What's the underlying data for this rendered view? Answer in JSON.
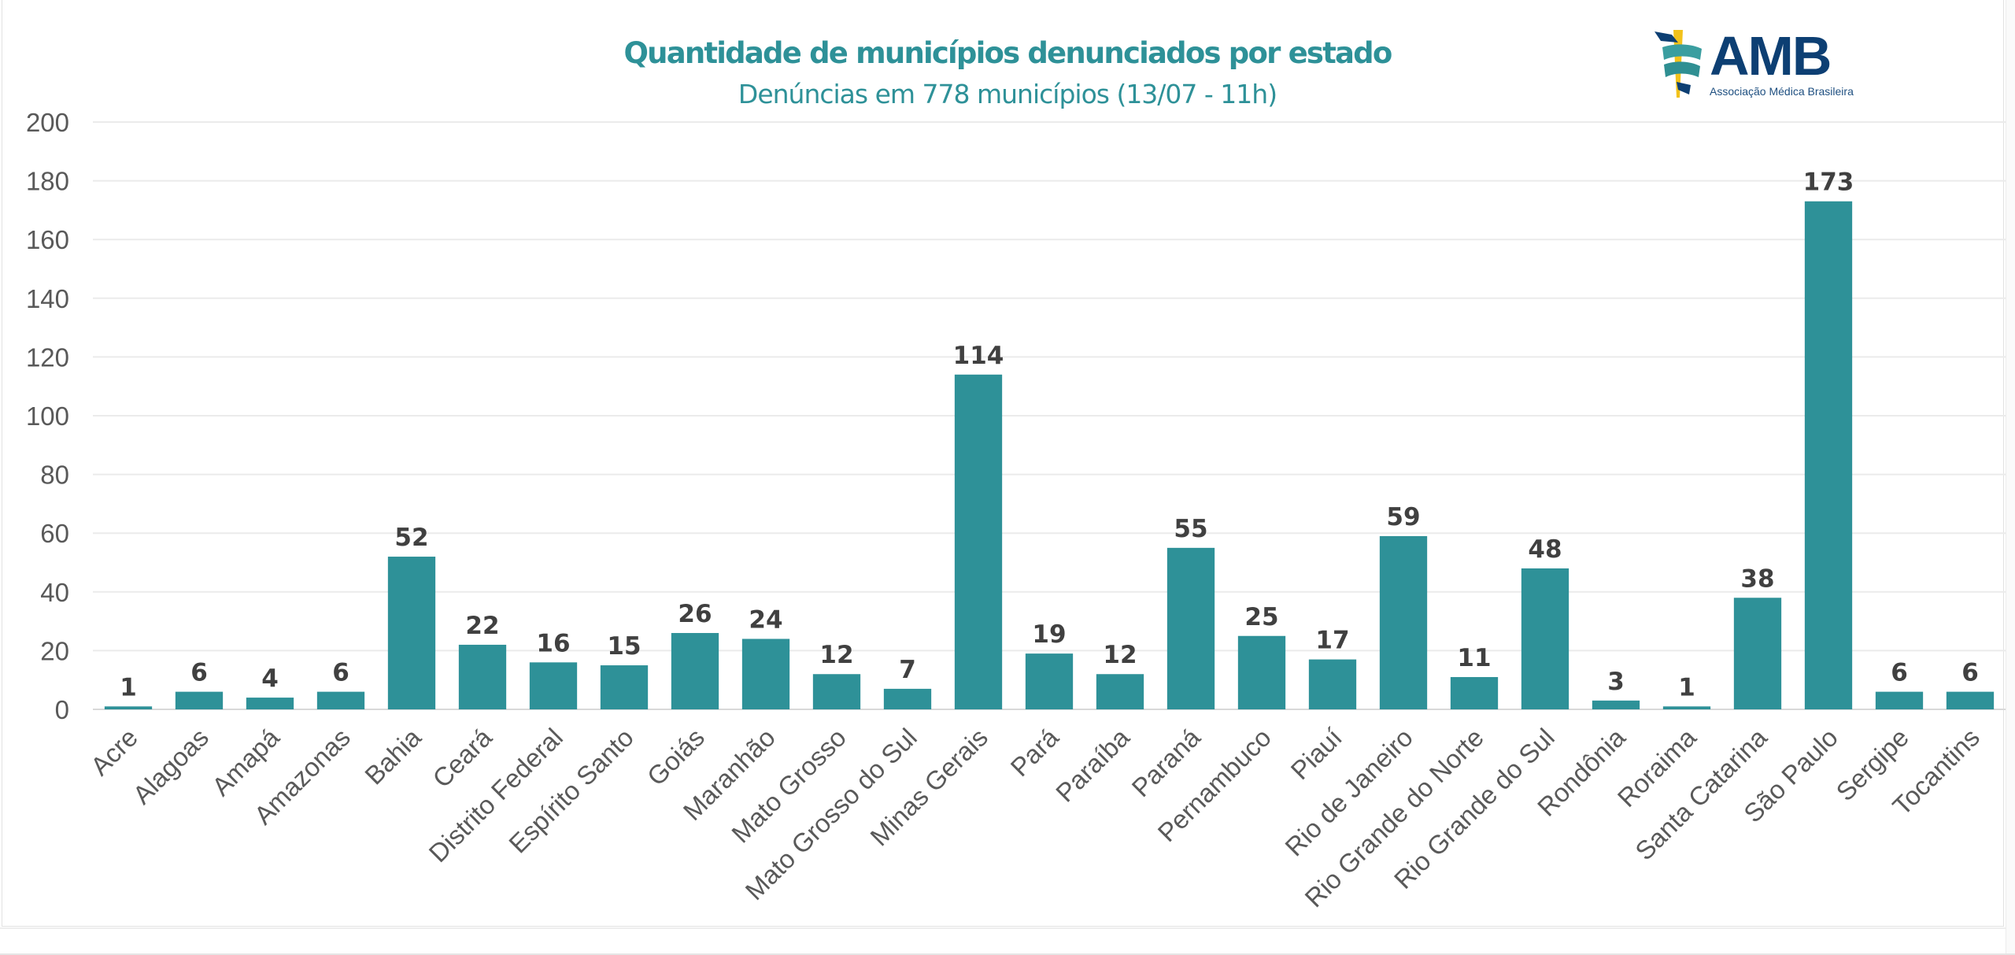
{
  "header": {
    "title": "Quantidade de municípios denunciados por estado",
    "subtitle": "Denúncias em 778 municípios (13/07 - 11h)"
  },
  "logo": {
    "acronym": "AMB",
    "name": "Associação Médica Brasileira",
    "colors": {
      "navy": "#0d3f73",
      "teal": "#3a9ea0",
      "yellow": "#f2c21b"
    }
  },
  "chart_data": {
    "type": "bar",
    "title": "Quantidade de municípios denunciados por estado",
    "subtitle": "Denúncias em 778 municípios (13/07 - 11h)",
    "xlabel": "",
    "ylabel": "",
    "ylim": [
      0,
      200
    ],
    "yticks": [
      0,
      20,
      40,
      60,
      80,
      100,
      120,
      140,
      160,
      180,
      200
    ],
    "grid": true,
    "legend": "none",
    "bar_color": "#2e9198",
    "categories": [
      "Acre",
      "Alagoas",
      "Amapá",
      "Amazonas",
      "Bahia",
      "Ceará",
      "Distrito Federal",
      "Espírito Santo",
      "Goiás",
      "Maranhão",
      "Mato Grosso",
      "Mato Grosso do Sul",
      "Minas Gerais",
      "Pará",
      "Paraíba",
      "Paraná",
      "Pernambuco",
      "Piauí",
      "Rio de Janeiro",
      "Rio Grande do Norte",
      "Rio Grande do Sul",
      "Rondônia",
      "Roraima",
      "Santa Catarina",
      "São Paulo",
      "Sergipe",
      "Tocantins"
    ],
    "values": [
      1,
      6,
      4,
      6,
      52,
      22,
      16,
      15,
      26,
      24,
      12,
      7,
      114,
      19,
      12,
      55,
      25,
      17,
      59,
      11,
      48,
      3,
      1,
      38,
      173,
      6,
      6
    ]
  }
}
